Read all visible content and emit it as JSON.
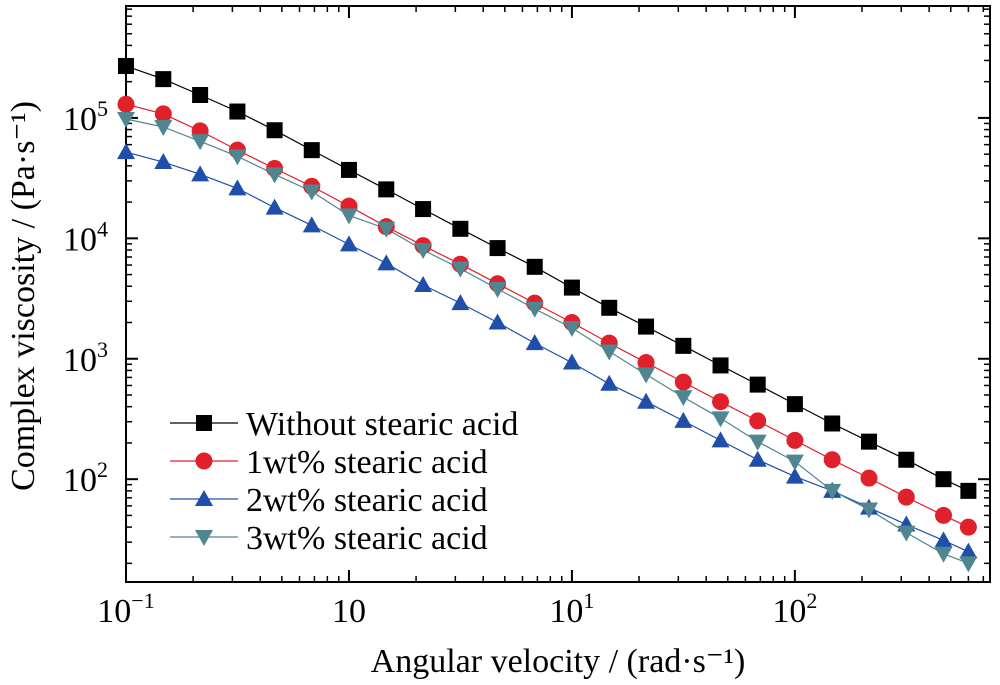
{
  "chart_data": {
    "type": "line",
    "xlabel": "Angular velocity / (rad·s⁻¹)",
    "ylabel": "Complex viscosity / (Pa·s⁻¹)",
    "x_scale": "log",
    "y_scale": "log",
    "xlim": [
      0.1,
      750
    ],
    "ylim": [
      14,
      850000
    ],
    "x_ticks": [
      {
        "value": 0.1,
        "base": "10",
        "exp": "−1"
      },
      {
        "value": 1,
        "base": "10",
        "exp": ""
      },
      {
        "value": 10,
        "base": "10",
        "exp": "1"
      },
      {
        "value": 100,
        "base": "10",
        "exp": "2"
      }
    ],
    "y_ticks": [
      {
        "value": 100,
        "base": "10",
        "exp": "2"
      },
      {
        "value": 1000,
        "base": "10",
        "exp": "3"
      },
      {
        "value": 10000,
        "base": "10",
        "exp": "4"
      },
      {
        "value": 100000,
        "base": "10",
        "exp": "5"
      }
    ],
    "grid": false,
    "legend_position": "bottom-left",
    "x": [
      0.1,
      0.147,
      0.215,
      0.316,
      0.464,
      0.681,
      1.0,
      1.47,
      2.15,
      3.16,
      4.64,
      6.81,
      10.0,
      14.7,
      21.5,
      31.6,
      46.4,
      68.1,
      100,
      147,
      215,
      316,
      464,
      600
    ],
    "series": [
      {
        "name": "Without stearic acid",
        "color": "#000000",
        "marker": "square",
        "values": [
          270000,
          210000,
          155000,
          113000,
          79000,
          54000,
          37000,
          25500,
          17500,
          12000,
          8300,
          5800,
          3900,
          2650,
          1850,
          1280,
          880,
          610,
          420,
          290,
          205,
          145,
          100,
          80
        ]
      },
      {
        "name": "1wt% stearic acid",
        "color": "#e0202a",
        "marker": "circle",
        "values": [
          130000,
          108000,
          78000,
          54000,
          38000,
          27000,
          18500,
          12500,
          8700,
          6100,
          4200,
          2900,
          2000,
          1350,
          930,
          640,
          440,
          305,
          210,
          145,
          102,
          71,
          50,
          40
        ]
      },
      {
        "name": "2wt% stearic acid",
        "color": "#1f4fa8",
        "marker": "triangle-up",
        "values": [
          52000,
          43000,
          34000,
          26000,
          18000,
          12800,
          8900,
          6200,
          4100,
          2900,
          2000,
          1350,
          930,
          620,
          440,
          305,
          210,
          145,
          105,
          80,
          58,
          42,
          31,
          25
        ]
      },
      {
        "name": "3wt% stearic acid",
        "color": "#4f8690",
        "marker": "triangle-down",
        "values": [
          98000,
          84000,
          64000,
          48000,
          34000,
          24500,
          15500,
          12000,
          8000,
          5600,
          3800,
          2600,
          1800,
          1150,
          740,
          480,
          320,
          205,
          140,
          80,
          56,
          36,
          24,
          20
        ]
      }
    ]
  }
}
